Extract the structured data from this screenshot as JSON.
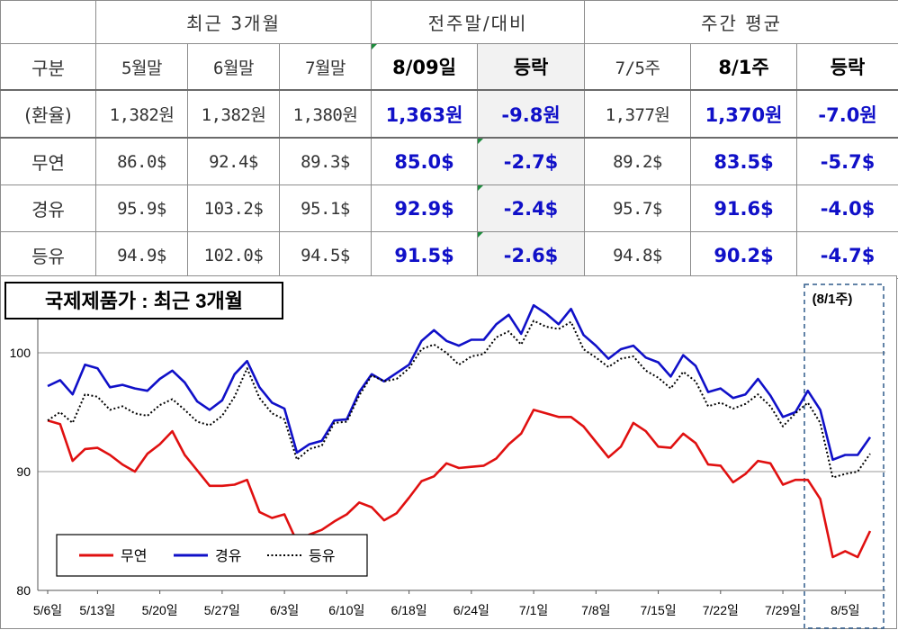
{
  "table": {
    "group_headers": [
      "최근 3개월",
      "전주말/대비",
      "주간 평균"
    ],
    "col_headers": [
      "구분",
      "5월말",
      "6월말",
      "7월말",
      "8/09일",
      "등락",
      "7/5주",
      "8/1주",
      "등락"
    ],
    "rows": [
      {
        "label": "(환율)",
        "values": [
          "1,382원",
          "1,382원",
          "1,380원",
          "1,363원",
          "-9.8원",
          "1,377원",
          "1,370원",
          "-7.0원"
        ]
      },
      {
        "label": "무연",
        "values": [
          "86.0$",
          "92.4$",
          "89.3$",
          "85.0$",
          "-2.7$",
          "89.2$",
          "83.5$",
          "-5.7$"
        ]
      },
      {
        "label": "경유",
        "values": [
          "95.9$",
          "103.2$",
          "95.1$",
          "92.9$",
          "-2.4$",
          "95.7$",
          "91.6$",
          "-4.0$"
        ]
      },
      {
        "label": "등유",
        "values": [
          "94.9$",
          "102.0$",
          "94.5$",
          "91.5$",
          "-2.6$",
          "94.8$",
          "90.2$",
          "-4.7$"
        ]
      }
    ]
  },
  "chart_title": "국제제품가 : 최근 3개월",
  "highlight_label": "(8/1주)",
  "chart_data": {
    "type": "line",
    "title": "국제제품가 : 최근 3개월",
    "ylim": [
      80,
      105
    ],
    "yticks": [
      80,
      90,
      100
    ],
    "xticks": [
      "5/6일",
      "5/13일",
      "5/20일",
      "5/27일",
      "6/3일",
      "6/10일",
      "6/18일",
      "6/24일",
      "7/1일",
      "7/8일",
      "7/15일",
      "7/22일",
      "7/29일",
      "8/5일"
    ],
    "xtick_index": [
      0,
      4,
      9,
      14,
      19,
      24,
      29,
      34,
      39,
      44,
      49,
      54,
      59,
      64
    ],
    "grid": true,
    "legend_position": "bottom-left",
    "highlight_range": [
      63,
      68
    ],
    "series": [
      {
        "name": "무연",
        "color": "#e01010",
        "style": "solid",
        "values": [
          94.3,
          94.0,
          90.9,
          91.9,
          92.0,
          91.4,
          90.6,
          90.0,
          91.5,
          92.3,
          93.4,
          91.4,
          90.1,
          88.8,
          88.8,
          88.9,
          89.3,
          86.6,
          86.1,
          86.4,
          84.1,
          84.7,
          85.1,
          85.8,
          86.4,
          87.4,
          87.0,
          85.9,
          86.5,
          87.8,
          89.2,
          89.6,
          90.7,
          90.3,
          90.4,
          90.5,
          91.1,
          92.3,
          93.2,
          95.2,
          94.9,
          94.6,
          94.6,
          93.8,
          92.5,
          91.2,
          92.1,
          94.1,
          93.4,
          92.1,
          92.0,
          93.2,
          92.4,
          90.6,
          90.5,
          89.1,
          89.8,
          90.9,
          90.7,
          88.9,
          89.3,
          89.3,
          87.7,
          82.8,
          83.3,
          82.8,
          85.0
        ]
      },
      {
        "name": "경유",
        "color": "#1010c8",
        "style": "solid",
        "values": [
          97.2,
          97.7,
          96.5,
          99.0,
          98.7,
          97.1,
          97.3,
          97.0,
          96.8,
          97.8,
          98.5,
          97.5,
          95.9,
          95.2,
          96.0,
          98.2,
          99.3,
          97.1,
          95.8,
          95.3,
          91.6,
          92.3,
          92.6,
          94.3,
          94.4,
          96.7,
          98.2,
          97.6,
          98.3,
          99.0,
          101.0,
          101.9,
          101.0,
          100.6,
          101.1,
          101.1,
          102.4,
          103.2,
          101.6,
          104.0,
          103.3,
          102.4,
          103.7,
          101.5,
          100.6,
          99.5,
          100.3,
          100.6,
          99.6,
          99.2,
          98.0,
          99.8,
          98.9,
          96.7,
          97.0,
          96.2,
          96.5,
          97.8,
          96.4,
          94.6,
          95.0,
          96.8,
          95.2,
          91.0,
          91.4,
          91.4,
          92.9
        ]
      },
      {
        "name": "등유",
        "color": "#000000",
        "style": "dotted",
        "values": [
          94.3,
          95.0,
          94.1,
          96.5,
          96.3,
          95.2,
          95.5,
          94.9,
          94.7,
          95.6,
          96.1,
          95.2,
          94.2,
          93.9,
          94.7,
          96.3,
          98.7,
          96.2,
          94.9,
          94.4,
          91.0,
          91.9,
          92.2,
          94.1,
          94.2,
          96.4,
          98.1,
          97.6,
          97.8,
          98.7,
          100.3,
          100.7,
          100.0,
          99.0,
          99.7,
          99.9,
          101.3,
          101.8,
          100.7,
          102.7,
          102.2,
          102.0,
          102.6,
          100.3,
          99.6,
          98.8,
          99.5,
          99.7,
          98.5,
          97.9,
          97.0,
          98.4,
          97.6,
          95.5,
          95.8,
          95.3,
          95.7,
          96.5,
          95.5,
          93.8,
          94.9,
          95.8,
          94.1,
          89.5,
          89.8,
          90.0,
          91.5
        ]
      }
    ]
  }
}
